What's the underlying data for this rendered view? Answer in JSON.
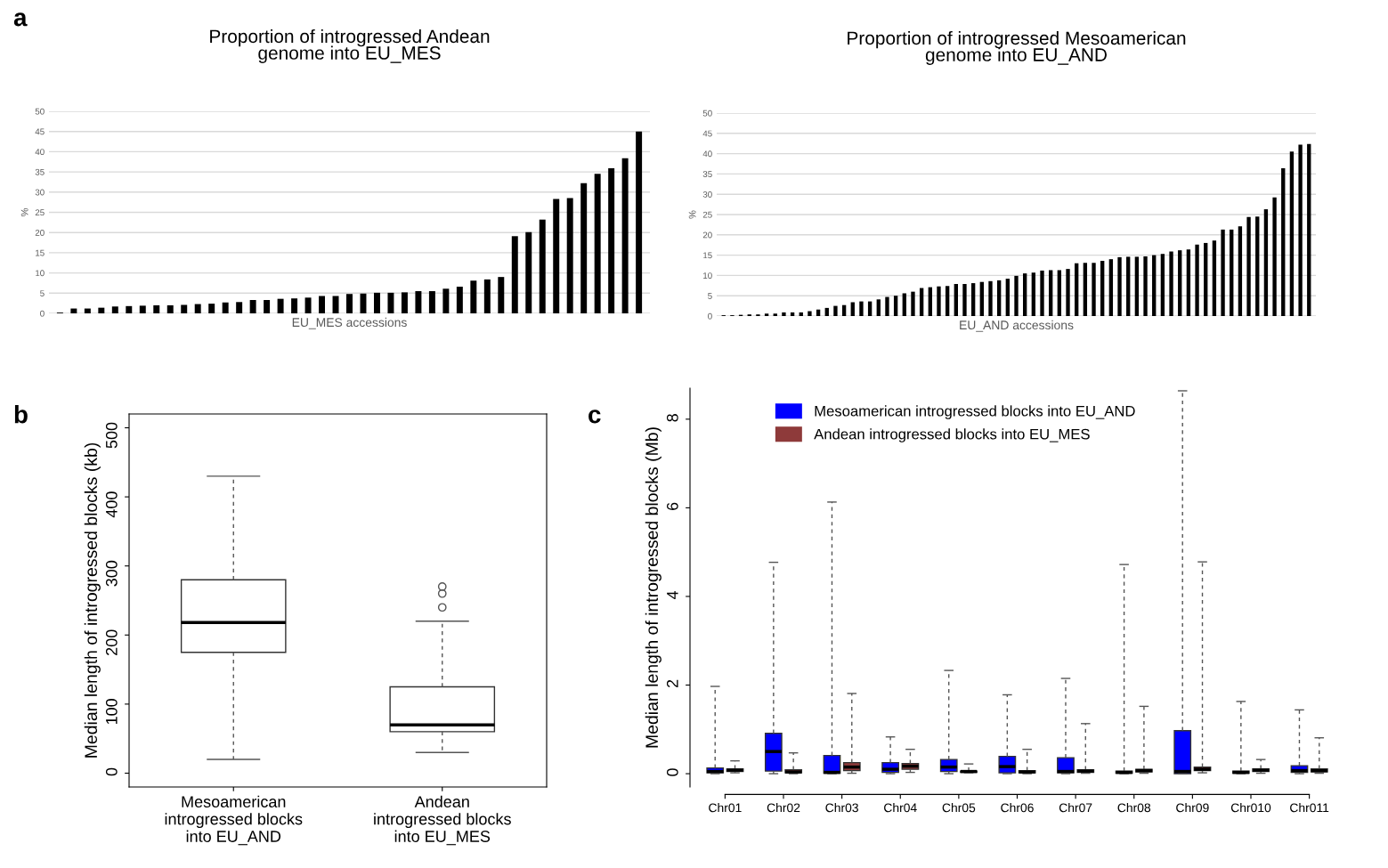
{
  "chart_data": [
    {
      "type": "bar",
      "title": "Proportion of introgressed Andean\ngenome into EU_MES",
      "xlabel": "EU_MES accessions",
      "ylabel": "%",
      "annotations": [
        "a"
      ],
      "categories": [
        null,
        null,
        null,
        null,
        null,
        null,
        null,
        null,
        null,
        null,
        null,
        null,
        null,
        null,
        null,
        null,
        null,
        null,
        null,
        null,
        null,
        null,
        null,
        null,
        null,
        null,
        null,
        null,
        null,
        null,
        null,
        null,
        null,
        null,
        null,
        null,
        null,
        null,
        null,
        null,
        null,
        null,
        null
      ],
      "values": [
        0.2,
        1.2,
        1.2,
        1.4,
        1.7,
        1.8,
        1.9,
        2.0,
        2.0,
        2.1,
        2.3,
        2.4,
        2.7,
        2.8,
        3.3,
        3.3,
        3.6,
        3.7,
        3.9,
        4.3,
        4.3,
        4.8,
        4.9,
        5.1,
        5.1,
        5.2,
        5.5,
        5.5,
        6.1,
        6.6,
        8.1,
        8.4,
        9.0,
        19.1,
        20.1,
        23.2,
        28.3,
        28.5,
        32.2,
        34.5,
        35.9,
        38.4,
        45.0
      ],
      "color": "#000000",
      "ylim": [
        0,
        50
      ],
      "yticks": [
        0,
        5,
        10,
        15,
        20,
        25,
        30,
        35,
        40,
        45,
        50
      ],
      "grid": "y"
    },
    {
      "type": "bar",
      "title": "Proportion of introgressed Mesoamerican\ngenome into EU_AND",
      "xlabel": "EU_AND accessions",
      "ylabel": "%",
      "categories": [
        null,
        null,
        null,
        null,
        null,
        null,
        null,
        null,
        null,
        null,
        null,
        null,
        null,
        null,
        null,
        null,
        null,
        null,
        null,
        null,
        null,
        null,
        null,
        null,
        null,
        null,
        null,
        null,
        null,
        null,
        null,
        null,
        null,
        null,
        null,
        null,
        null,
        null,
        null,
        null,
        null,
        null,
        null,
        null,
        null,
        null,
        null,
        null,
        null,
        null,
        null,
        null,
        null,
        null,
        null,
        null,
        null,
        null,
        null,
        null,
        null,
        null,
        null,
        null,
        null,
        null,
        null,
        null,
        null
      ],
      "values": [
        0.2,
        0.2,
        0.3,
        0.4,
        0.4,
        0.6,
        0.6,
        0.9,
        0.9,
        0.9,
        1.2,
        1.6,
        2.0,
        2.5,
        2.7,
        3.4,
        3.6,
        3.6,
        4.1,
        4.7,
        5.0,
        5.6,
        6.0,
        6.9,
        7.1,
        7.3,
        7.4,
        7.9,
        7.9,
        8.1,
        8.4,
        8.6,
        8.8,
        9.2,
        9.9,
        10.5,
        10.7,
        11.2,
        11.3,
        11.3,
        11.6,
        13.0,
        13.1,
        13.1,
        13.6,
        14.0,
        14.5,
        14.6,
        14.6,
        14.7,
        15.0,
        15.3,
        15.9,
        16.2,
        16.4,
        17.6,
        18.0,
        18.6,
        21.3,
        21.3,
        22.1,
        24.4,
        24.5,
        26.3,
        29.2,
        36.4,
        40.5,
        42.2,
        42.4
      ],
      "color": "#000000",
      "ylim": [
        0,
        50
      ],
      "yticks": [
        0,
        5,
        10,
        15,
        20,
        25,
        30,
        35,
        40,
        45,
        50
      ],
      "grid": "y"
    },
    {
      "type": "box",
      "ylabel": "Median length of introgressed blocks (kb)",
      "annotations": [
        "b"
      ],
      "categories": [
        "Mesoamerican\nintrogressed blocks\ninto EU_AND",
        "Andean\nintrogressed blocks\ninto EU_MES"
      ],
      "boxes": [
        {
          "low": 20,
          "q1": 175,
          "median": 218,
          "q3": 280,
          "high": 430
        },
        {
          "low": 30,
          "q1": 60,
          "median": 70,
          "q3": 125,
          "high": 220,
          "outliers": [
            240,
            260,
            270
          ]
        }
      ],
      "ylim": [
        -20,
        520
      ],
      "yticks": [
        0,
        100,
        200,
        300,
        400,
        500
      ],
      "grid": false
    },
    {
      "type": "box",
      "ylabel": "Median length of introgressed blocks (Mb)",
      "annotations": [
        "c"
      ],
      "categories": [
        "Chr01",
        "Chr02",
        "Chr03",
        "Chr04",
        "Chr05",
        "Chr06",
        "Chr07",
        "Chr08",
        "Chr09",
        "Chr010",
        "Chr011"
      ],
      "series": [
        {
          "name": "Mesoamerican introgressed blocks into EU_AND",
          "color": "#0000ff",
          "boxes": [
            {
              "low": 0,
              "q1": 0.02,
              "median": 0.05,
              "q3": 0.13,
              "high": 1.97
            },
            {
              "low": 0,
              "q1": 0.06,
              "median": 0.5,
              "q3": 0.91,
              "high": 4.77
            },
            {
              "low": 0,
              "q1": 0.01,
              "median": 0.03,
              "q3": 0.41,
              "high": 6.13
            },
            {
              "low": 0,
              "q1": 0.03,
              "median": 0.1,
              "q3": 0.25,
              "high": 0.83
            },
            {
              "low": 0,
              "q1": 0.05,
              "median": 0.15,
              "q3": 0.32,
              "high": 2.33
            },
            {
              "low": 0,
              "q1": 0.02,
              "median": 0.16,
              "q3": 0.39,
              "high": 1.78
            },
            {
              "low": 0,
              "q1": 0.02,
              "median": 0.05,
              "q3": 0.36,
              "high": 2.15
            },
            {
              "low": 0,
              "q1": 0.01,
              "median": 0.03,
              "q3": 0.06,
              "high": 4.72
            },
            {
              "low": 0,
              "q1": 0.0,
              "median": 0.05,
              "q3": 0.97,
              "high": 8.64
            },
            {
              "low": 0,
              "q1": 0.01,
              "median": 0.03,
              "q3": 0.06,
              "high": 1.63
            },
            {
              "low": 0,
              "q1": 0.03,
              "median": 0.07,
              "q3": 0.18,
              "high": 1.44
            }
          ]
        },
        {
          "name": "Andean introgressed blocks into EU_MES",
          "color": "#8e3a3a",
          "boxes": [
            {
              "low": 0.02,
              "q1": 0.05,
              "median": 0.08,
              "q3": 0.11,
              "high": 0.29
            },
            {
              "low": 0,
              "q1": 0.02,
              "median": 0.04,
              "q3": 0.09,
              "high": 0.47
            },
            {
              "low": 0.01,
              "q1": 0.07,
              "median": 0.15,
              "q3": 0.25,
              "high": 1.81
            },
            {
              "low": 0.03,
              "q1": 0.1,
              "median": 0.17,
              "q3": 0.23,
              "high": 0.55
            },
            {
              "low": 0.02,
              "q1": 0.03,
              "median": 0.05,
              "q3": 0.06,
              "high": 0.22
            },
            {
              "low": 0,
              "q1": 0.02,
              "median": 0.04,
              "q3": 0.07,
              "high": 0.55
            },
            {
              "low": 0.01,
              "q1": 0.03,
              "median": 0.06,
              "q3": 0.09,
              "high": 1.13
            },
            {
              "low": 0.01,
              "q1": 0.04,
              "median": 0.07,
              "q3": 0.1,
              "high": 1.52
            },
            {
              "low": 0.02,
              "q1": 0.07,
              "median": 0.1,
              "q3": 0.15,
              "high": 4.78
            },
            {
              "low": 0.01,
              "q1": 0.05,
              "median": 0.08,
              "q3": 0.11,
              "high": 0.32
            },
            {
              "low": 0.01,
              "q1": 0.04,
              "median": 0.07,
              "q3": 0.11,
              "high": 0.81
            }
          ]
        }
      ],
      "ylim": [
        -0.3,
        8.7
      ],
      "yticks": [
        0,
        2,
        4,
        6,
        8
      ],
      "grid": false,
      "legend": "top left"
    }
  ]
}
